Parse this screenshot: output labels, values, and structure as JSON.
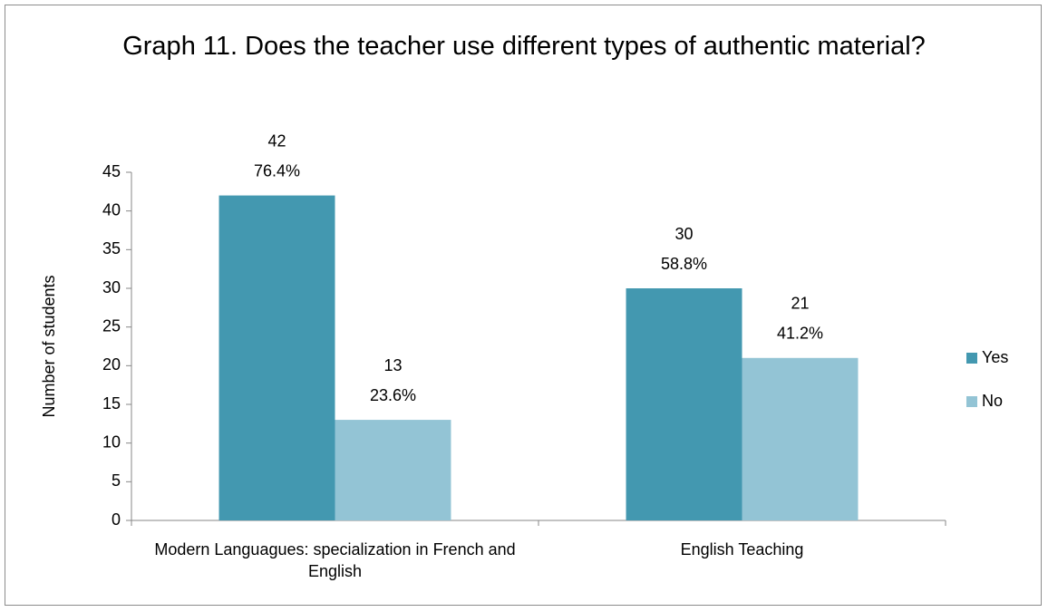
{
  "chart_data": {
    "type": "bar",
    "title": "Graph 11. Does the teacher use different types of authentic material?",
    "y_label": "Number of students",
    "categories": [
      "Modern Languagues: specialization in French and English",
      "English Teaching"
    ],
    "series": [
      {
        "name": "Yes",
        "color": "#4398b0",
        "values": [
          42,
          30
        ],
        "percent_labels": [
          "76.4%",
          "58.8%"
        ]
      },
      {
        "name": "No",
        "color": "#93c4d5",
        "values": [
          13,
          21
        ],
        "percent_labels": [
          "23.6%",
          "41.2%"
        ]
      }
    ],
    "ylim": [
      0,
      45
    ],
    "yticks": [
      0,
      5,
      10,
      15,
      20,
      25,
      30,
      35,
      40,
      45
    ],
    "legend": "right",
    "grid": false
  }
}
